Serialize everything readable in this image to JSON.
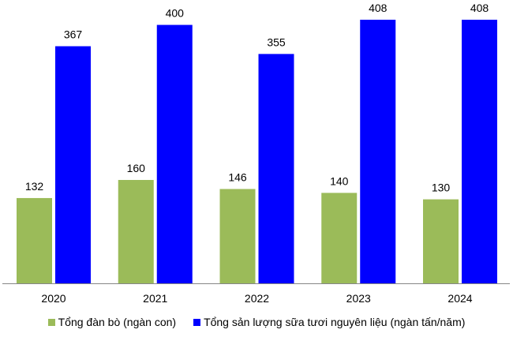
{
  "chart_data": {
    "type": "bar",
    "categories": [
      "2020",
      "2021",
      "2022",
      "2023",
      "2024"
    ],
    "series": [
      {
        "name": "Tổng đàn bò (ngàn con)",
        "values": [
          132,
          160,
          146,
          140,
          130
        ],
        "color": "#9BBB59"
      },
      {
        "name": "Tổng sản lượng sữa tươi nguyên liệu (ngàn tấn/năm)",
        "values": [
          367,
          400,
          355,
          408,
          408
        ],
        "color": "#0000FF"
      }
    ],
    "data_labels": true,
    "grid": false,
    "legend_position": "bottom",
    "title": "",
    "xlabel": "",
    "ylabel": ""
  }
}
